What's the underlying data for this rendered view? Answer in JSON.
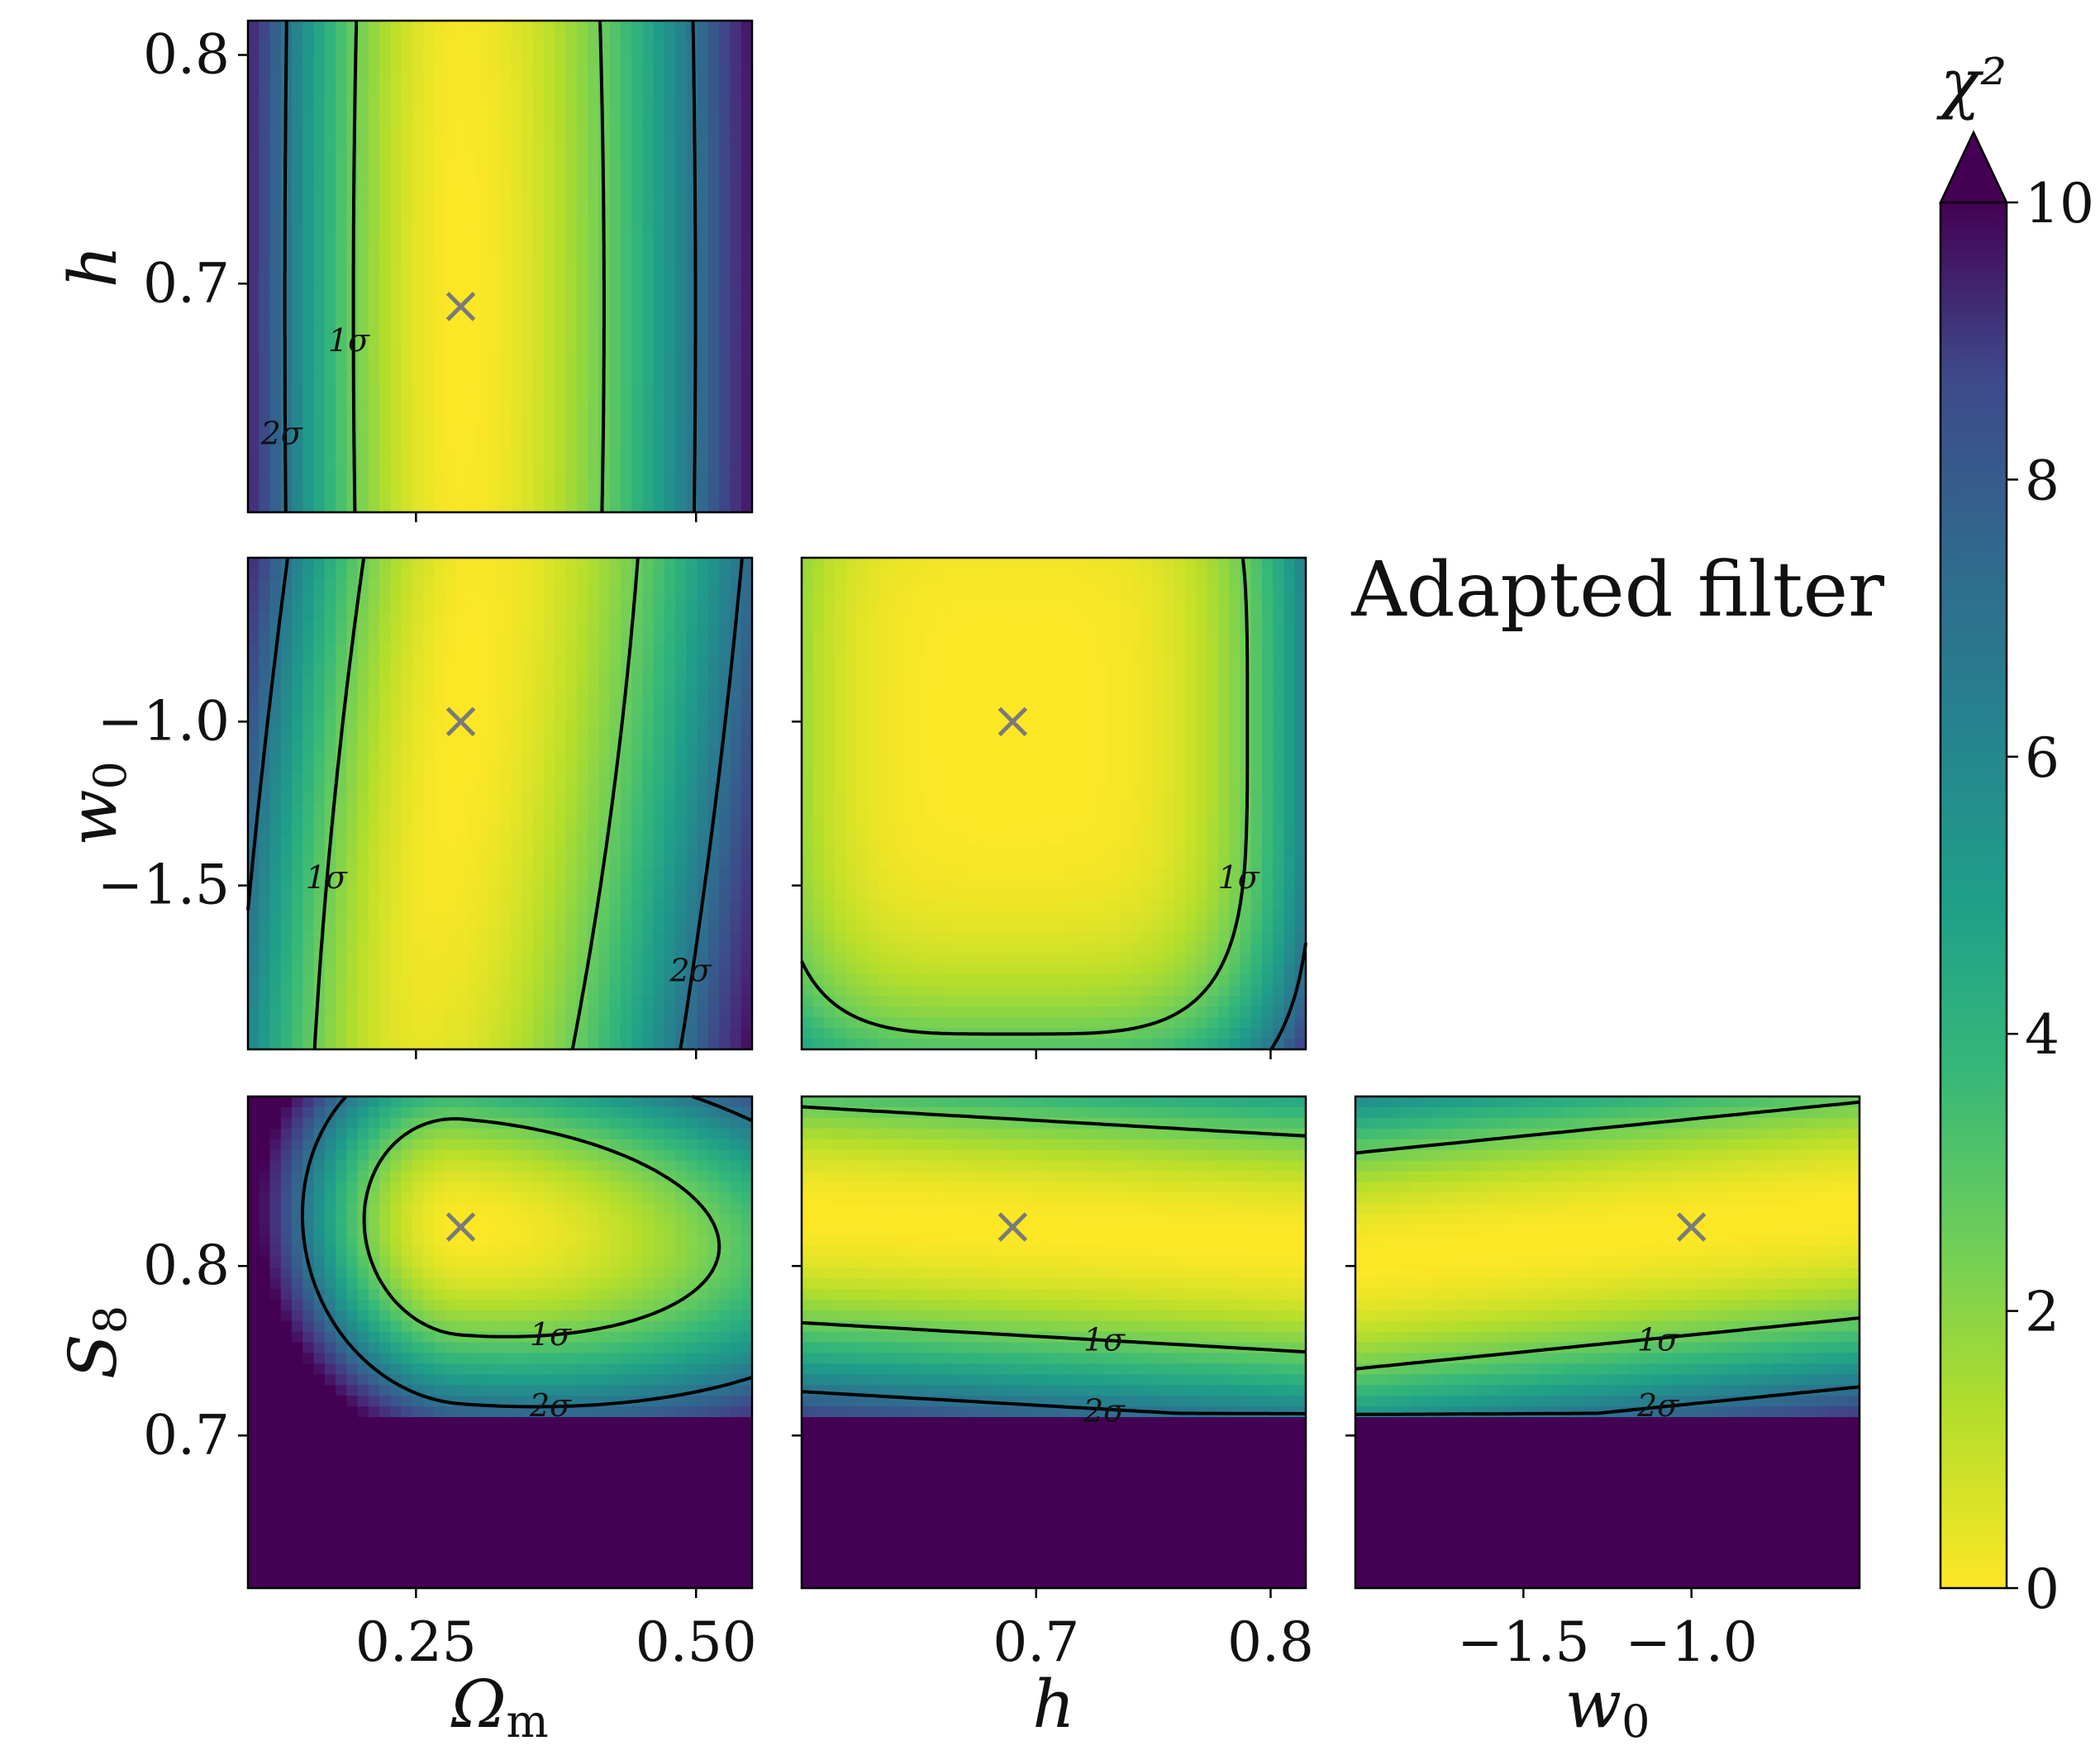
{
  "chart_data": {
    "type": "heatmap",
    "colorscale": "viridis_r",
    "annotation": "Adapted filter",
    "colorbar": {
      "label": "χ²",
      "range": [
        0,
        10
      ],
      "ticks": [
        "0",
        "2",
        "4",
        "6",
        "8",
        "10"
      ],
      "extend": "max"
    },
    "contour_labels": [
      "1σ",
      "2σ"
    ],
    "fiducial": {
      "Omega_m": 0.29,
      "h": 0.69,
      "w0": -1.0,
      "S8": 0.823
    },
    "parameters": [
      {
        "key": "Omega_m",
        "label": "Ω",
        "sub": "m",
        "range": [
          0.1,
          0.55
        ],
        "ticks": [
          0.25,
          0.5
        ],
        "tick_labels": [
          "0.25",
          "0.50"
        ]
      },
      {
        "key": "h",
        "label": "h",
        "sub": "",
        "range": [
          0.6,
          0.815
        ],
        "ticks": [
          0.7,
          0.8
        ],
        "tick_labels": [
          "0.7",
          "0.8"
        ]
      },
      {
        "key": "w0",
        "label": "w",
        "sub": "0",
        "range": [
          -2.0,
          -0.5
        ],
        "ticks": [
          -1.5,
          -1.0
        ],
        "tick_labels": [
          "−1.5",
          "−1.0"
        ]
      },
      {
        "key": "S8",
        "label": "S",
        "sub": "8",
        "range": [
          0.61,
          0.9
        ],
        "ticks": [
          0.7,
          0.8
        ],
        "tick_labels": [
          "0.7",
          "0.8"
        ]
      }
    ],
    "panels": [
      {
        "x": "Omega_m",
        "y": "h"
      },
      {
        "x": "Omega_m",
        "y": "w0"
      },
      {
        "x": "h",
        "y": "w0"
      },
      {
        "x": "Omega_m",
        "y": "S8"
      },
      {
        "x": "h",
        "y": "S8"
      },
      {
        "x": "w0",
        "y": "S8"
      }
    ]
  }
}
